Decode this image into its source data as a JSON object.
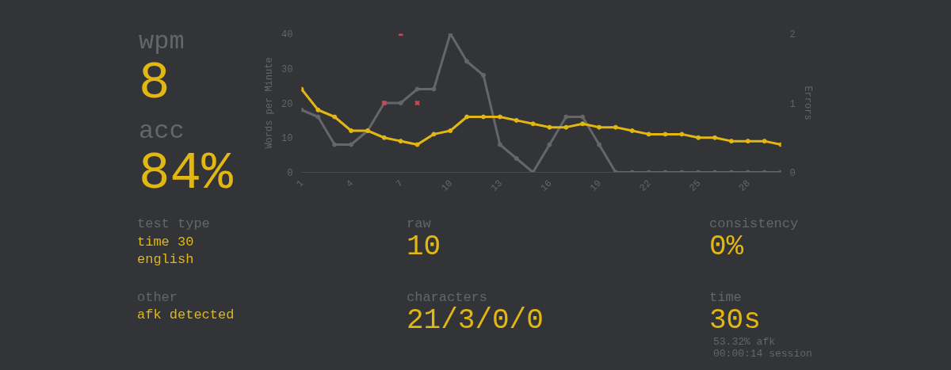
{
  "chart_data": {
    "type": "line",
    "x": [
      1,
      2,
      3,
      4,
      5,
      6,
      7,
      8,
      9,
      10,
      11,
      12,
      13,
      14,
      15,
      16,
      17,
      18,
      19,
      20,
      21,
      22,
      23,
      24,
      25,
      26,
      27,
      28,
      29,
      30
    ],
    "series": [
      {
        "color": "#646669",
        "values": [
          18,
          16,
          8,
          8,
          12,
          20,
          20,
          24,
          24,
          40,
          32,
          28,
          8,
          4,
          0,
          8,
          16,
          16,
          8,
          0,
          0,
          0,
          0,
          0,
          0,
          0,
          0,
          0,
          0,
          0
        ]
      },
      {
        "color": "#e2b714",
        "values": [
          24,
          18,
          16,
          12,
          12,
          10,
          9,
          8,
          11,
          12,
          16,
          16,
          16,
          15,
          14,
          13,
          13,
          14,
          13,
          13,
          12,
          11,
          11,
          11,
          10,
          10,
          9,
          9,
          9,
          8
        ]
      },
      {
        "type": "scatter",
        "axis": "y2",
        "marker": "cross",
        "color": "#ca4754",
        "values": [
          null,
          null,
          null,
          null,
          null,
          1,
          2,
          1,
          null,
          null,
          null,
          null,
          null,
          null,
          null,
          null,
          null,
          null,
          null,
          null,
          null,
          null,
          null,
          null,
          null,
          null,
          null,
          null,
          null,
          null
        ]
      }
    ],
    "xlim": [
      1,
      30
    ],
    "xticks": [
      1,
      4,
      7,
      10,
      13,
      16,
      19,
      22,
      25,
      28
    ],
    "ylim": [
      0,
      40
    ],
    "yticks": [
      0,
      10,
      20,
      30,
      40
    ],
    "y2lim": [
      0,
      2
    ],
    "y2ticks": [
      0,
      1,
      2
    ],
    "ylabel": "Words per Minute",
    "y2label": "Errors",
    "marker": "circle",
    "annotations": [
      "wpm",
      "8",
      "acc",
      "84%",
      "test type",
      "time 30",
      "english",
      "other",
      "afk detected",
      "raw",
      "10",
      "characters",
      "21/3/0/0",
      "consistency",
      "0%",
      "time",
      "30s",
      "53.32% afk",
      "00:00:14 session"
    ]
  }
}
